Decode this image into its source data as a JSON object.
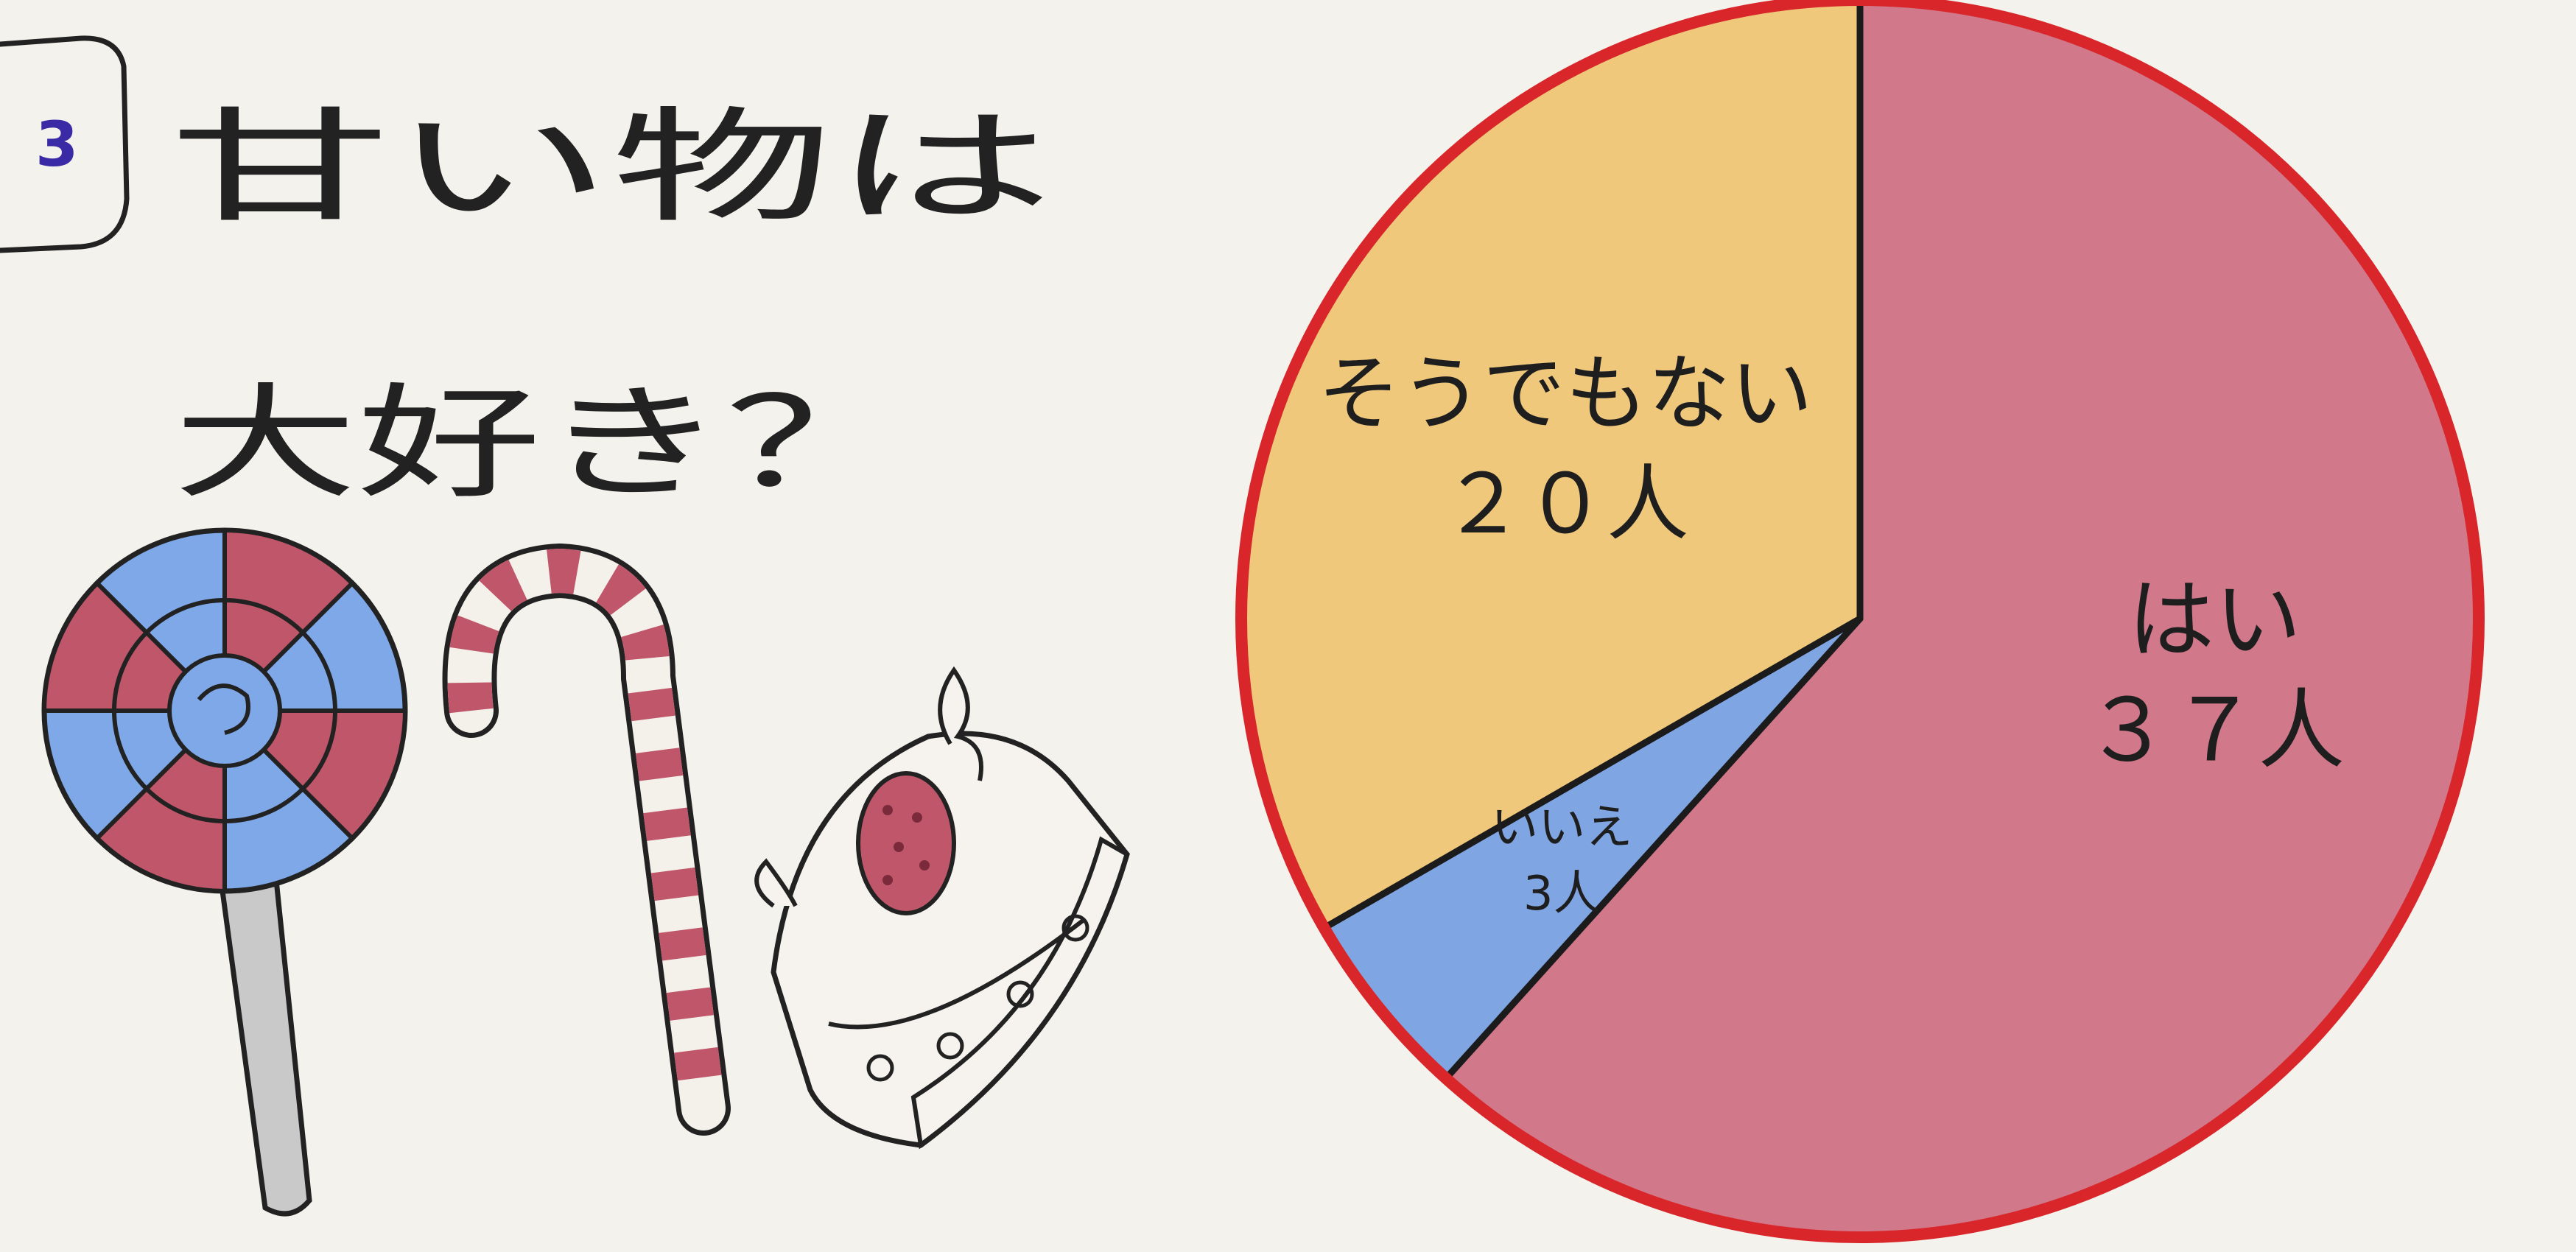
{
  "question": {
    "number": "3",
    "line1": "甘い物は",
    "line2": "大好き？"
  },
  "chart_data": {
    "type": "pie",
    "title": "甘い物は大好き？",
    "slices": [
      {
        "label": "はい",
        "value": 37,
        "count_text": "３７人",
        "color": "#c7566e"
      },
      {
        "label": "いいえ",
        "value": 3,
        "count_text": "3人",
        "color": "#5f8fe0"
      },
      {
        "label": "そうでもない",
        "value": 20,
        "count_text": "２０人",
        "color": "#edbd5c"
      }
    ],
    "outline_color": "#d8262a"
  }
}
